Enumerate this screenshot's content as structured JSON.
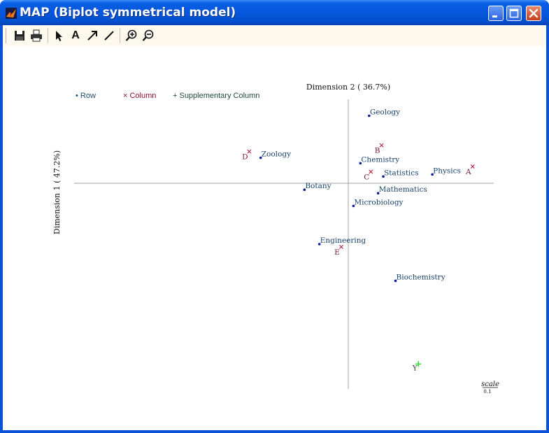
{
  "window": {
    "title": "MAP (Biplot symmetrical model)",
    "colors": {
      "titlebar": "#0657dd",
      "close": "#d2512f",
      "toolbar_bg": "#fdf9ec"
    }
  },
  "toolbar": {
    "tools": [
      "save-icon",
      "print-icon",
      "select-arrow-icon",
      "text-icon",
      "arrow-icon",
      "line-icon",
      "zoom-in-icon",
      "zoom-out-icon"
    ],
    "text_tool_label": "A"
  },
  "legend": {
    "row": "• Row",
    "column": "× Column",
    "supplementary": "+ Supplementary Column",
    "colors": {
      "row": "#1a4a6e",
      "column": "#8a1030",
      "supplementary": "#1e4a3a"
    }
  },
  "chart_data": {
    "type": "scatter",
    "xlabel": "Dimension  2 ( 36.7%)",
    "ylabel": "Dimension  1 ( 47.2%)",
    "scale_label": "scale",
    "scale_value": "0.1",
    "series": [
      {
        "name": "Row",
        "color": "#0a1aa0",
        "label_color": "#16416a",
        "points": [
          {
            "label": "Geology",
            "x": 0.077,
            "y": 0.268
          },
          {
            "label": "Zoology",
            "x": -0.359,
            "y": 0.1
          },
          {
            "label": "Chemistry",
            "x": 0.042,
            "y": 0.078
          },
          {
            "label": "Statistics",
            "x": 0.134,
            "y": 0.025
          },
          {
            "label": "Physics",
            "x": 0.331,
            "y": 0.033
          },
          {
            "label": "Botany",
            "x": -0.183,
            "y": -0.028
          },
          {
            "label": "Mathematics",
            "x": 0.113,
            "y": -0.042
          },
          {
            "label": "Microbiology",
            "x": 0.014,
            "y": -0.093
          },
          {
            "label": "Engineering",
            "x": -0.123,
            "y": -0.246
          },
          {
            "label": "Biochemistry",
            "x": 0.183,
            "y": -0.393
          }
        ]
      },
      {
        "name": "Column",
        "color": "#b01030",
        "label_color": "#7a1030",
        "points": [
          {
            "label": "D",
            "x": -0.405,
            "y": 0.125
          },
          {
            "label": "B",
            "x": 0.127,
            "y": 0.15
          },
          {
            "label": "C",
            "x": 0.084,
            "y": 0.044
          },
          {
            "label": "A",
            "x": 0.493,
            "y": 0.065
          },
          {
            "label": "E",
            "x": -0.035,
            "y": -0.257
          }
        ]
      },
      {
        "name": "Supplementary Column",
        "color": "#22dd22",
        "label_color": "#2a3a2a",
        "points": [
          {
            "label": "Y",
            "x": 0.275,
            "y": -0.726
          }
        ]
      }
    ],
    "axes": {
      "xlim": [
        -1.109,
        0.578
      ],
      "ylim": [
        -0.826,
        0.334
      ],
      "line_color": "#a0a0a0"
    }
  }
}
